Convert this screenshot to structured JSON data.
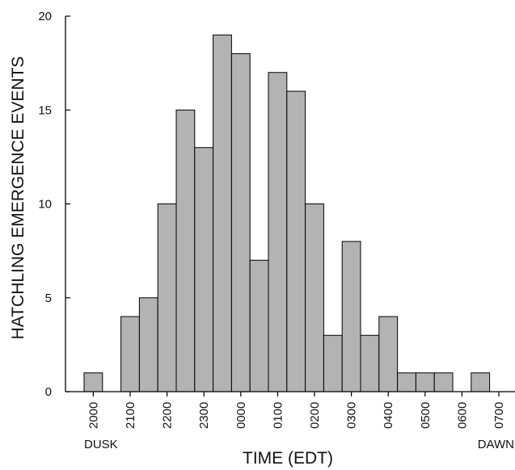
{
  "chart_data": {
    "type": "bar",
    "xlabel": "TIME (EDT)",
    "ylabel": "HATCHLING EMERGENCE EVENTS",
    "ylim": [
      0,
      20
    ],
    "yticks": [
      0,
      5,
      10,
      15,
      20
    ],
    "x_tick_labels": [
      "2000",
      "2100",
      "2200",
      "2300",
      "0000",
      "0100",
      "0200",
      "0300",
      "0400",
      "0500",
      "0600",
      "0700"
    ],
    "annotations": {
      "start": "DUSK",
      "end": "DAWN"
    },
    "values": [
      1,
      0,
      4,
      5,
      10,
      15,
      13,
      19,
      18,
      7,
      17,
      16,
      10,
      3,
      8,
      3,
      4,
      1,
      1,
      1,
      0,
      1
    ],
    "bar_color": "#b3b3b3",
    "edge_color": "#000000",
    "grid": false
  }
}
